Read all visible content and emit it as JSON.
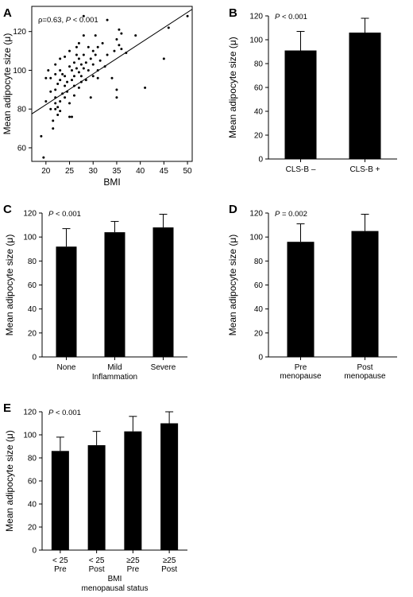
{
  "panels": [
    {
      "id": "A",
      "letter": "A"
    },
    {
      "id": "B",
      "letter": "B"
    },
    {
      "id": "C",
      "letter": "C"
    },
    {
      "id": "D",
      "letter": "D"
    },
    {
      "id": "E",
      "letter": "E"
    }
  ],
  "chart_data": [
    {
      "id": "A",
      "type": "scatter",
      "annotation": {
        "prefix": "ρ=0.63, ",
        "p_symbol": "P",
        "rest": " < 0.001"
      },
      "xlabel": "BMI",
      "ylabel": "Mean adipocyte size (μ)",
      "xlim": [
        17,
        51
      ],
      "ylim": [
        53,
        133
      ],
      "xticks": [
        20,
        25,
        30,
        35,
        40,
        45,
        50
      ],
      "yticks": [
        60,
        80,
        100,
        120
      ],
      "regression_line": {
        "x": [
          17,
          51
        ],
        "y": [
          77.5,
          131.5
        ]
      },
      "points": [
        [
          19,
          66
        ],
        [
          19.5,
          55
        ],
        [
          20,
          84
        ],
        [
          20,
          96
        ],
        [
          20.5,
          100
        ],
        [
          21,
          89
        ],
        [
          21,
          96
        ],
        [
          21,
          80
        ],
        [
          21.5,
          70
        ],
        [
          21.5,
          74
        ],
        [
          22,
          83
        ],
        [
          22,
          80
        ],
        [
          22,
          86
        ],
        [
          22,
          90
        ],
        [
          22,
          98
        ],
        [
          22,
          103
        ],
        [
          22.5,
          77
        ],
        [
          22.5,
          81
        ],
        [
          22.5,
          93
        ],
        [
          23,
          84
        ],
        [
          23,
          79
        ],
        [
          23,
          95
        ],
        [
          23,
          100
        ],
        [
          23,
          106
        ],
        [
          23.5,
          88
        ],
        [
          23.5,
          98
        ],
        [
          24,
          86
        ],
        [
          24,
          97
        ],
        [
          24,
          107
        ],
        [
          24,
          92
        ],
        [
          24.5,
          89
        ],
        [
          24.5,
          94
        ],
        [
          25,
          102
        ],
        [
          25,
          110
        ],
        [
          25,
          83
        ],
        [
          25,
          76
        ],
        [
          25.5,
          76
        ],
        [
          25.5,
          95
        ],
        [
          25.5,
          100
        ],
        [
          26,
          104
        ],
        [
          26,
          97
        ],
        [
          26,
          87
        ],
        [
          26,
          92
        ],
        [
          26.5,
          108
        ],
        [
          26.5,
          101
        ],
        [
          26.5,
          112
        ],
        [
          27,
          91
        ],
        [
          27,
          99
        ],
        [
          27,
          106
        ],
        [
          27,
          114
        ],
        [
          27.5,
          103
        ],
        [
          27.5,
          97
        ],
        [
          27.5,
          94
        ],
        [
          28,
          118
        ],
        [
          28,
          108
        ],
        [
          28,
          101
        ],
        [
          28,
          128
        ],
        [
          28.5,
          104
        ],
        [
          28.5,
          95
        ],
        [
          29,
          112
        ],
        [
          29,
          100
        ],
        [
          29.5,
          106
        ],
        [
          29.5,
          86
        ],
        [
          30,
          110
        ],
        [
          30,
          103
        ],
        [
          30,
          97
        ],
        [
          30.5,
          108
        ],
        [
          30.5,
          118
        ],
        [
          31,
          112
        ],
        [
          31,
          100
        ],
        [
          31,
          96
        ],
        [
          31.5,
          105
        ],
        [
          32,
          114
        ],
        [
          32.5,
          102
        ],
        [
          33,
          108
        ],
        [
          33,
          126
        ],
        [
          34,
          96
        ],
        [
          34.5,
          110
        ],
        [
          35,
          116
        ],
        [
          35,
          90
        ],
        [
          35,
          86
        ],
        [
          35.5,
          121
        ],
        [
          35.5,
          113
        ],
        [
          36,
          119
        ],
        [
          36,
          111
        ],
        [
          37,
          109
        ],
        [
          39,
          118
        ],
        [
          41,
          91
        ],
        [
          45,
          106
        ],
        [
          46,
          122
        ],
        [
          50,
          128
        ]
      ]
    },
    {
      "id": "B",
      "type": "bar",
      "annotation": {
        "p_symbol": "P",
        "rest": " < 0.001"
      },
      "ylabel": "Mean adipocyte size (μ)",
      "ylim": [
        0,
        120
      ],
      "yticks": [
        0,
        20,
        40,
        60,
        80,
        100,
        120
      ],
      "categories": [
        [
          "CLS-B –"
        ],
        [
          "CLS-B +"
        ]
      ],
      "values": [
        91,
        106
      ],
      "errors": [
        16,
        12
      ],
      "xlabel": ""
    },
    {
      "id": "C",
      "type": "bar",
      "annotation": {
        "p_symbol": "P",
        "rest": " < 0.001"
      },
      "ylabel": "Mean adipocyte size (μ)",
      "ylim": [
        0,
        120
      ],
      "yticks": [
        0,
        20,
        40,
        60,
        80,
        100,
        120
      ],
      "categories": [
        [
          "None"
        ],
        [
          "Mild"
        ],
        [
          "Severe"
        ]
      ],
      "values": [
        92,
        104,
        108
      ],
      "errors": [
        15,
        9,
        11
      ],
      "xlabel": "Inflammation"
    },
    {
      "id": "D",
      "type": "bar",
      "annotation": {
        "p_symbol": "P",
        "rest": " = 0.002"
      },
      "ylabel": "Mean adipocyte size (μ)",
      "ylim": [
        0,
        120
      ],
      "yticks": [
        0,
        20,
        40,
        60,
        80,
        100,
        120
      ],
      "categories": [
        [
          "Pre",
          "menopause"
        ],
        [
          "Post",
          "menopause"
        ]
      ],
      "values": [
        96,
        105
      ],
      "errors": [
        15,
        14
      ],
      "xlabel": ""
    },
    {
      "id": "E",
      "type": "bar",
      "annotation": {
        "p_symbol": "P",
        "rest": " < 0.001"
      },
      "ylabel": "Mean adipocyte size (μ)",
      "ylim": [
        0,
        120
      ],
      "yticks": [
        0,
        20,
        40,
        60,
        80,
        100,
        120
      ],
      "categories": [
        [
          "< 25",
          "Pre"
        ],
        [
          "< 25",
          "Post"
        ],
        [
          "≥25",
          "Pre"
        ],
        [
          "≥25",
          "Post"
        ]
      ],
      "values": [
        86,
        91,
        103,
        110
      ],
      "errors": [
        12,
        12,
        13,
        10
      ],
      "xlabel": "BMI",
      "xlabel2": "menopausal status"
    }
  ]
}
